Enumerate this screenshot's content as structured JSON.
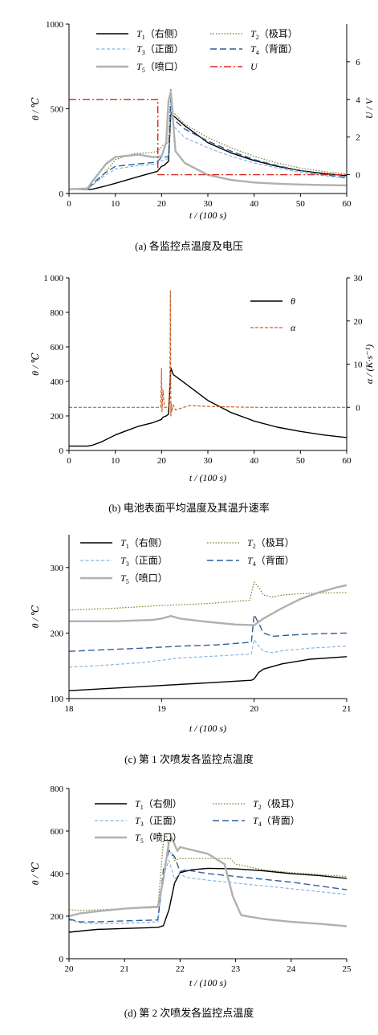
{
  "colors": {
    "T1": "#000000",
    "T2": "#7a7a24",
    "T3": "#8cb4e2",
    "T4": "#2f5f99",
    "T5": "#b0b0b0",
    "U": "#d9261c",
    "alpha": "#c8642a"
  },
  "chart_data": [
    {
      "id": "a",
      "type": "line",
      "caption": "(a)  各监控点温度及电压",
      "xlabel": "t / (100 s)",
      "ylabel": "θ / ℃",
      "y2label": "U / V",
      "xlim": [
        0,
        60
      ],
      "ylim": [
        0,
        1000
      ],
      "y2lim": [
        -1,
        8
      ],
      "xticks": [
        "0",
        "10",
        "20",
        "30",
        "40",
        "50",
        "60"
      ],
      "yticks": [
        "0",
        "500",
        "1000"
      ],
      "y2ticks": [
        "0",
        "2",
        "4",
        "6"
      ],
      "legend": [
        {
          "key": "T1",
          "sub": "1",
          "label": "（右侧）"
        },
        {
          "key": "T2",
          "sub": "2",
          "label": "（极耳）"
        },
        {
          "key": "T3",
          "sub": "3",
          "label": "（正面）"
        },
        {
          "key": "T4",
          "sub": "4",
          "label": "（背面）"
        },
        {
          "key": "T5",
          "sub": "5",
          "label": "（喷口）"
        },
        {
          "key": "U",
          "sub": "",
          "label": ""
        }
      ],
      "series": [
        {
          "key": "T1",
          "axis": "y",
          "x": [
            0,
            5,
            8,
            10,
            15,
            19,
            20,
            20.5,
            21.5,
            22,
            22.5,
            25,
            30,
            35,
            40,
            45,
            50,
            55,
            60
          ],
          "y": [
            25,
            25,
            45,
            60,
            100,
            130,
            160,
            165,
            190,
            480,
            460,
            400,
            300,
            240,
            195,
            160,
            135,
            118,
            105
          ]
        },
        {
          "key": "T2",
          "axis": "y",
          "x": [
            0,
            4,
            6,
            8,
            10,
            14,
            17,
            19,
            20,
            20.5,
            21.5,
            22,
            22.5,
            25,
            30,
            35,
            40,
            45,
            50,
            55,
            60
          ],
          "y": [
            25,
            28,
            70,
            130,
            200,
            235,
            240,
            248,
            275,
            290,
            300,
            620,
            480,
            410,
            330,
            270,
            220,
            180,
            150,
            130,
            115
          ]
        },
        {
          "key": "T3",
          "axis": "y",
          "x": [
            0,
            4,
            6,
            8,
            10,
            15,
            19,
            20,
            21,
            21.5,
            22,
            22.5,
            25,
            30,
            35,
            40,
            45,
            50,
            55,
            60
          ],
          "y": [
            25,
            28,
            70,
            110,
            145,
            165,
            175,
            195,
            200,
            210,
            520,
            400,
            330,
            270,
            220,
            180,
            150,
            125,
            105,
            90
          ]
        },
        {
          "key": "T4",
          "axis": "y",
          "x": [
            0,
            4,
            6,
            8,
            10,
            15,
            19,
            20,
            21,
            21.5,
            22,
            22.5,
            25,
            30,
            35,
            40,
            45,
            50,
            55,
            60
          ],
          "y": [
            25,
            28,
            80,
            125,
            160,
            175,
            185,
            215,
            215,
            220,
            560,
            440,
            380,
            310,
            250,
            200,
            165,
            135,
            112,
            95
          ]
        },
        {
          "key": "T5",
          "axis": "y",
          "x": [
            0,
            4,
            5,
            7,
            8,
            10,
            15,
            17,
            18,
            19,
            20,
            21,
            21.5,
            22,
            23,
            25,
            30,
            35,
            40,
            45,
            50,
            55,
            60
          ],
          "y": [
            25,
            30,
            70,
            140,
            175,
            215,
            230,
            220,
            215,
            215,
            220,
            300,
            550,
            600,
            250,
            180,
            110,
            80,
            65,
            58,
            53,
            50,
            48
          ]
        },
        {
          "key": "U",
          "axis": "y2",
          "x": [
            0,
            19.2,
            19.2,
            60
          ],
          "y": [
            4.0,
            4.0,
            0,
            0
          ]
        }
      ]
    },
    {
      "id": "b",
      "type": "line",
      "caption": "(b)  电池表面平均温度及其温升速率",
      "xlabel": "t / (100 s)",
      "ylabel": "θ / ℃",
      "y2label": "α / (K·s⁻¹)",
      "xlim": [
        0,
        60
      ],
      "ylim": [
        0,
        1000
      ],
      "y2lim": [
        -10,
        30
      ],
      "xticks": [
        "0",
        "10",
        "20",
        "30",
        "40",
        "50",
        "60"
      ],
      "yticks": [
        "0",
        "200",
        "400",
        "600",
        "800",
        "1 000"
      ],
      "y2ticks": [
        "0",
        "10",
        "20",
        "30"
      ],
      "legend": [
        {
          "key": "theta",
          "label": "θ"
        },
        {
          "key": "alpha",
          "label": "α"
        }
      ],
      "series": [
        {
          "key": "theta",
          "axis": "y",
          "x": [
            0,
            4,
            5,
            7,
            10,
            12,
            15,
            18,
            20,
            20.2,
            20.5,
            21,
            21.5,
            22,
            22.5,
            25,
            30,
            35,
            40,
            45,
            50,
            55,
            60
          ],
          "y": [
            25,
            25,
            30,
            50,
            90,
            110,
            140,
            160,
            180,
            190,
            195,
            200,
            210,
            480,
            440,
            390,
            290,
            220,
            170,
            135,
            110,
            90,
            75
          ]
        },
        {
          "key": "alpha",
          "axis": "y2",
          "x": [
            0,
            19,
            19.8,
            20,
            20.1,
            20.3,
            20.6,
            21.5,
            21.8,
            21.9,
            22,
            22.1,
            22.2,
            22.5,
            23,
            26,
            30,
            40,
            50,
            60
          ],
          "y": [
            0,
            0,
            0,
            9,
            -1,
            4,
            0,
            0,
            6,
            27,
            -2,
            1,
            -1,
            0.6,
            -0.6,
            0.4,
            0.2,
            0,
            0,
            0
          ]
        }
      ]
    },
    {
      "id": "c",
      "type": "line",
      "caption": "(c)  第 1 次喷发各监控点温度",
      "xlabel": "t / (100 s)",
      "ylabel": "θ / ℃",
      "xlim": [
        18,
        21
      ],
      "ylim": [
        100,
        350
      ],
      "xticks": [
        "18",
        "19",
        "20",
        "21"
      ],
      "yticks": [
        "100",
        "200",
        "300"
      ],
      "legend": [
        {
          "key": "T1",
          "sub": "1",
          "label": "（右侧）"
        },
        {
          "key": "T2",
          "sub": "2",
          "label": "（极耳）"
        },
        {
          "key": "T3",
          "sub": "3",
          "label": "（正面）"
        },
        {
          "key": "T4",
          "sub": "4",
          "label": "（背面）"
        },
        {
          "key": "T5",
          "sub": "5",
          "label": "（喷口）"
        }
      ],
      "series": [
        {
          "key": "T1",
          "x": [
            18,
            18.5,
            19,
            19.5,
            19.97,
            20,
            20.05,
            20.1,
            20.3,
            20.6,
            21
          ],
          "y": [
            112,
            116,
            120,
            124,
            128,
            130,
            140,
            145,
            153,
            160,
            164
          ]
        },
        {
          "key": "T2",
          "x": [
            18,
            18.5,
            19,
            19.5,
            19.95,
            20,
            20.05,
            20.1,
            20.2,
            20.3,
            20.5,
            21
          ],
          "y": [
            235,
            238,
            242,
            245,
            250,
            278,
            270,
            258,
            255,
            258,
            260,
            262
          ]
        },
        {
          "key": "T3",
          "x": [
            18,
            18.3,
            18.8,
            19.2,
            19.6,
            19.97,
            20,
            20.05,
            20.1,
            20.2,
            20.3,
            20.6,
            21
          ],
          "y": [
            148,
            150,
            155,
            162,
            165,
            168,
            190,
            180,
            172,
            170,
            173,
            177,
            180
          ]
        },
        {
          "key": "T4",
          "x": [
            18,
            18.3,
            18.8,
            19.2,
            19.6,
            19.97,
            20,
            20.05,
            20.1,
            20.2,
            20.4,
            20.7,
            21
          ],
          "y": [
            172,
            174,
            177,
            180,
            182,
            186,
            228,
            215,
            200,
            195,
            197,
            199,
            200
          ]
        },
        {
          "key": "T5",
          "x": [
            18,
            18.5,
            18.9,
            19,
            19.1,
            19.2,
            19.5,
            19.8,
            20,
            20.1,
            20.3,
            20.5,
            20.7,
            20.9,
            21
          ],
          "y": [
            218,
            218,
            220,
            222,
            226,
            222,
            217,
            213,
            212,
            222,
            238,
            252,
            262,
            270,
            273
          ]
        }
      ]
    },
    {
      "id": "d",
      "type": "line",
      "caption": "(d)  第 2 次喷发各监控点温度",
      "xlabel": "t / (100 s)",
      "ylabel": "θ / ℃",
      "xlim": [
        20,
        25
      ],
      "ylim": [
        0,
        900
      ],
      "xticks": [
        "20",
        "21",
        "22",
        "23",
        "24",
        "25"
      ],
      "yticks": [
        "0",
        "200",
        "400",
        "600",
        "800"
      ],
      "legend": [
        {
          "key": "T1",
          "sub": "1",
          "label": "（右侧）"
        },
        {
          "key": "T2",
          "sub": "2",
          "label": "（极耳）"
        },
        {
          "key": "T3",
          "sub": "3",
          "label": "（正面）"
        },
        {
          "key": "T4",
          "sub": "4",
          "label": "（背面）"
        },
        {
          "key": "T5",
          "sub": "5",
          "label": "（喷口）"
        }
      ],
      "series": [
        {
          "key": "T1",
          "x": [
            20,
            20.5,
            21,
            21.6,
            21.7,
            21.8,
            21.9,
            22,
            22.2,
            22.5,
            23,
            23.5,
            24,
            24.5,
            25
          ],
          "y": [
            140,
            155,
            160,
            165,
            175,
            260,
            400,
            455,
            470,
            478,
            475,
            465,
            450,
            440,
            425
          ]
        },
        {
          "key": "T2",
          "x": [
            20,
            20.2,
            20.5,
            21,
            21.6,
            21.7,
            21.75,
            21.8,
            21.9,
            22,
            22.5,
            22.9,
            23,
            23.5,
            24,
            24.5,
            25
          ],
          "y": [
            260,
            255,
            258,
            265,
            270,
            620,
            660,
            580,
            520,
            530,
            530,
            530,
            500,
            470,
            455,
            445,
            435
          ]
        },
        {
          "key": "T3",
          "x": [
            20,
            20.2,
            20.5,
            21,
            21.6,
            21.7,
            21.8,
            21.9,
            22,
            22.1,
            22.5,
            23,
            23.5,
            24,
            24.5,
            25
          ],
          "y": [
            205,
            190,
            185,
            188,
            195,
            440,
            520,
            420,
            450,
            430,
            415,
            400,
            385,
            370,
            355,
            340
          ]
        },
        {
          "key": "T4",
          "x": [
            20,
            20.2,
            20.5,
            21,
            21.6,
            21.7,
            21.8,
            21.9,
            22,
            22.1,
            22.5,
            23,
            23.5,
            24,
            24.5,
            25
          ],
          "y": [
            210,
            195,
            195,
            200,
            205,
            470,
            570,
            540,
            460,
            470,
            450,
            435,
            420,
            405,
            385,
            365
          ]
        },
        {
          "key": "T5",
          "x": [
            20,
            20.2,
            20.5,
            21,
            21.6,
            21.7,
            21.8,
            21.85,
            21.95,
            22,
            22.5,
            22.8,
            22.95,
            23.1,
            23.5,
            24,
            24.5,
            25
          ],
          "y": [
            225,
            240,
            250,
            265,
            275,
            420,
            620,
            640,
            570,
            590,
            555,
            500,
            330,
            230,
            210,
            195,
            185,
            172
          ]
        }
      ]
    }
  ]
}
